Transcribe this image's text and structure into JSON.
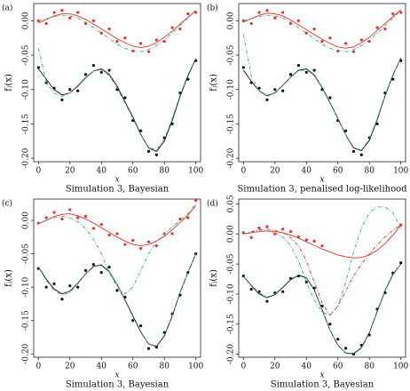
{
  "chart_data": [
    {
      "type": "scatter",
      "panel": "(a)",
      "caption": "Simulation 3, Bayesian",
      "xlabel": "x",
      "ylabel": "fⱼ(x)",
      "xlim": [
        -3,
        103
      ],
      "ylim": [
        -0.205,
        0.025
      ],
      "xticks": [
        0,
        20,
        40,
        60,
        80,
        100
      ],
      "yticks": [
        {
          "value": -0.2,
          "label": "-0.20"
        },
        {
          "value": -0.15,
          "label": "-0.15"
        },
        {
          "value": -0.1,
          "label": "-0.10"
        },
        {
          "value": -0.05,
          "label": "-0.05"
        },
        {
          "value": 0,
          "label": "0.00"
        }
      ],
      "x": [
        0,
        5,
        10,
        15,
        20,
        25,
        30,
        35,
        40,
        45,
        50,
        55,
        60,
        65,
        70,
        75,
        80,
        85,
        90,
        95,
        100
      ],
      "series": [
        {
          "style": "points",
          "color": "#e8302a",
          "values": [
            0.0,
            -0.004,
            0.012,
            0.015,
            0.004,
            0.012,
            -0.004,
            0.0,
            -0.018,
            -0.012,
            -0.03,
            -0.025,
            -0.044,
            -0.033,
            -0.045,
            -0.028,
            -0.03,
            -0.01,
            -0.012,
            0.01,
            0.012
          ]
        },
        {
          "style": "points",
          "color": "#111111",
          "values": [
            -0.068,
            -0.09,
            -0.098,
            -0.115,
            -0.1,
            -0.102,
            -0.078,
            -0.065,
            -0.075,
            -0.072,
            -0.1,
            -0.112,
            -0.145,
            -0.16,
            -0.19,
            -0.195,
            -0.17,
            -0.15,
            -0.105,
            -0.085,
            -0.058
          ]
        },
        {
          "style": "solid",
          "color": "#e8302a",
          "values": [
            -0.003,
            0.002,
            0.007,
            0.01,
            0.01,
            0.007,
            0.002,
            -0.005,
            -0.012,
            -0.019,
            -0.026,
            -0.032,
            -0.037,
            -0.039,
            -0.037,
            -0.032,
            -0.024,
            -0.015,
            -0.005,
            0.005,
            0.015
          ]
        },
        {
          "style": "solid",
          "color": "#111111",
          "values": [
            -0.07,
            -0.085,
            -0.1,
            -0.108,
            -0.105,
            -0.095,
            -0.083,
            -0.073,
            -0.07,
            -0.078,
            -0.095,
            -0.118,
            -0.14,
            -0.165,
            -0.185,
            -0.19,
            -0.175,
            -0.145,
            -0.11,
            -0.08,
            -0.055
          ]
        },
        {
          "style": "dashed",
          "color": "#3aa88a",
          "values": [
            0.0,
            0.003,
            0.006,
            0.008,
            0.007,
            0.004,
            -0.002,
            -0.01,
            -0.018,
            -0.026,
            -0.034,
            -0.04,
            -0.044,
            -0.045,
            -0.042,
            -0.036,
            -0.028,
            -0.018,
            -0.007,
            0.004,
            0.015
          ]
        },
        {
          "style": "dashed",
          "color": "#3aa88a",
          "values": [
            -0.04,
            -0.09,
            -0.105,
            -0.11,
            -0.105,
            -0.094,
            -0.082,
            -0.073,
            -0.071,
            -0.08,
            -0.098,
            -0.12,
            -0.142,
            -0.166,
            -0.184,
            -0.188,
            -0.172,
            -0.142,
            -0.108,
            -0.078,
            -0.055
          ]
        }
      ]
    },
    {
      "type": "scatter",
      "panel": "(b)",
      "caption": "Simulation 3, penalised log-likelihood",
      "xlabel": "x",
      "ylabel": "fⱼ(x)",
      "xlim": [
        -3,
        103
      ],
      "ylim": [
        -0.205,
        0.025
      ],
      "xticks": [
        0,
        20,
        40,
        60,
        80,
        100
      ],
      "yticks": [
        {
          "value": -0.2,
          "label": "-0.20"
        },
        {
          "value": -0.15,
          "label": "-0.15"
        },
        {
          "value": -0.1,
          "label": "-0.10"
        },
        {
          "value": -0.05,
          "label": "-0.05"
        },
        {
          "value": 0,
          "label": "0.00"
        }
      ],
      "x": [
        0,
        5,
        10,
        15,
        20,
        25,
        30,
        35,
        40,
        45,
        50,
        55,
        60,
        65,
        70,
        75,
        80,
        85,
        90,
        95,
        100
      ],
      "series": [
        {
          "style": "points",
          "color": "#e8302a",
          "values": [
            0.0,
            -0.004,
            0.012,
            0.015,
            0.004,
            0.012,
            -0.004,
            0.0,
            -0.018,
            -0.012,
            -0.03,
            -0.025,
            -0.044,
            -0.033,
            -0.045,
            -0.028,
            -0.03,
            -0.01,
            -0.012,
            0.01,
            0.012
          ]
        },
        {
          "style": "points",
          "color": "#111111",
          "values": [
            -0.068,
            -0.09,
            -0.098,
            -0.115,
            -0.1,
            -0.102,
            -0.078,
            -0.065,
            -0.075,
            -0.072,
            -0.1,
            -0.112,
            -0.145,
            -0.16,
            -0.19,
            -0.195,
            -0.17,
            -0.15,
            -0.105,
            -0.085,
            -0.058
          ]
        },
        {
          "style": "solid",
          "color": "#e8302a",
          "values": [
            -0.002,
            0.003,
            0.008,
            0.011,
            0.01,
            0.007,
            0.001,
            -0.006,
            -0.013,
            -0.02,
            -0.027,
            -0.033,
            -0.038,
            -0.04,
            -0.038,
            -0.032,
            -0.024,
            -0.014,
            -0.004,
            0.006,
            0.016
          ]
        },
        {
          "style": "solid",
          "color": "#111111",
          "values": [
            -0.072,
            -0.088,
            -0.102,
            -0.109,
            -0.105,
            -0.094,
            -0.082,
            -0.072,
            -0.07,
            -0.079,
            -0.097,
            -0.119,
            -0.142,
            -0.166,
            -0.185,
            -0.189,
            -0.174,
            -0.144,
            -0.109,
            -0.079,
            -0.054
          ]
        },
        {
          "style": "dashed",
          "color": "#3aa88a",
          "values": [
            0.0,
            0.003,
            0.006,
            0.008,
            0.007,
            0.004,
            -0.002,
            -0.01,
            -0.018,
            -0.026,
            -0.034,
            -0.04,
            -0.044,
            -0.045,
            -0.042,
            -0.036,
            -0.028,
            -0.018,
            -0.007,
            0.004,
            0.015
          ]
        },
        {
          "style": "dashed",
          "color": "#3aa88a",
          "values": [
            -0.02,
            -0.08,
            -0.102,
            -0.11,
            -0.105,
            -0.094,
            -0.082,
            -0.073,
            -0.071,
            -0.08,
            -0.098,
            -0.12,
            -0.142,
            -0.166,
            -0.184,
            -0.188,
            -0.172,
            -0.142,
            -0.108,
            -0.078,
            -0.055
          ]
        }
      ]
    },
    {
      "type": "scatter",
      "panel": "(c)",
      "caption": "Simulation 3, Bayesian",
      "xlabel": "x",
      "ylabel": "fⱼ(x)",
      "xlim": [
        -3,
        103
      ],
      "ylim": [
        -0.205,
        0.032
      ],
      "xticks": [
        0,
        20,
        40,
        60,
        80,
        100
      ],
      "yticks": [
        {
          "value": -0.2,
          "label": "-0.20"
        },
        {
          "value": -0.15,
          "label": "-0.15"
        },
        {
          "value": -0.1,
          "label": "-0.10"
        },
        {
          "value": -0.05,
          "label": "-0.05"
        },
        {
          "value": 0,
          "label": "0.00"
        }
      ],
      "x": [
        0,
        5,
        10,
        15,
        20,
        25,
        30,
        35,
        40,
        45,
        50,
        55,
        60,
        65,
        70,
        75,
        80,
        85,
        90,
        95,
        100
      ],
      "series": [
        {
          "style": "points",
          "color": "#e8302a",
          "values": [
            -0.004,
            0.004,
            0.012,
            0.002,
            0.016,
            0.004,
            0.006,
            -0.012,
            -0.006,
            -0.022,
            -0.02,
            -0.036,
            -0.03,
            -0.042,
            -0.032,
            -0.038,
            -0.02,
            -0.02,
            0.002,
            0.004,
            0.03
          ]
        },
        {
          "style": "points",
          "color": "#111111",
          "values": [
            -0.072,
            -0.1,
            -0.095,
            -0.118,
            -0.098,
            -0.1,
            -0.075,
            -0.066,
            -0.078,
            -0.07,
            -0.105,
            -0.115,
            -0.15,
            -0.158,
            -0.192,
            -0.19,
            -0.168,
            -0.14,
            -0.112,
            -0.078,
            -0.05
          ]
        },
        {
          "style": "solid",
          "color": "#e8302a",
          "values": [
            -0.005,
            0.0,
            0.006,
            0.009,
            0.01,
            0.007,
            0.002,
            -0.004,
            -0.011,
            -0.018,
            -0.025,
            -0.031,
            -0.036,
            -0.038,
            -0.036,
            -0.031,
            -0.024,
            -0.014,
            -0.003,
            0.008,
            0.022
          ]
        },
        {
          "style": "solid",
          "color": "#111111",
          "values": [
            -0.07,
            -0.088,
            -0.103,
            -0.11,
            -0.106,
            -0.094,
            -0.08,
            -0.069,
            -0.067,
            -0.077,
            -0.096,
            -0.119,
            -0.143,
            -0.167,
            -0.185,
            -0.189,
            -0.173,
            -0.143,
            -0.108,
            -0.078,
            -0.05
          ]
        },
        {
          "style": "dashed",
          "color": "#3aa88a",
          "values": [
            -0.005,
            0.0,
            0.004,
            0.006,
            0.004,
            -0.002,
            -0.012,
            -0.028,
            -0.05,
            -0.078,
            -0.1,
            -0.11,
            -0.1,
            -0.075,
            -0.05,
            -0.032,
            -0.02,
            -0.01,
            0.0,
            0.01,
            0.025
          ]
        },
        {
          "style": "dashed",
          "color": "#3aa88a",
          "values": [
            -0.07,
            -0.09,
            -0.105,
            -0.112,
            -0.108,
            -0.095,
            -0.08,
            -0.068,
            -0.066,
            -0.076,
            -0.096,
            -0.12,
            -0.145,
            -0.168,
            -0.185,
            -0.188,
            -0.172,
            -0.142,
            -0.108,
            -0.078,
            -0.05
          ]
        }
      ]
    },
    {
      "type": "scatter",
      "panel": "(d)",
      "caption": "Simulation 3, Bayesian",
      "xlabel": "x",
      "ylabel": "fⱼ(x)",
      "xlim": [
        -3,
        103
      ],
      "ylim": [
        -0.205,
        0.058
      ],
      "xticks": [
        0,
        20,
        40,
        60,
        80,
        100
      ],
      "yticks": [
        {
          "value": -0.2,
          "label": "-0.20"
        },
        {
          "value": -0.15,
          "label": "-0.15"
        },
        {
          "value": -0.1,
          "label": "-0.10"
        },
        {
          "value": -0.05,
          "label": "-0.05"
        },
        {
          "value": 0,
          "label": "0.00"
        },
        {
          "value": 0.05,
          "label": "0.05"
        }
      ],
      "x": [
        0,
        5,
        10,
        15,
        20,
        25,
        30,
        35,
        40,
        45,
        50,
        55,
        60,
        65,
        70,
        75,
        80,
        85,
        90,
        95,
        100
      ],
      "series": [
        {
          "style": "points",
          "color": "#e8302a",
          "values": [
            0.002,
            -0.006,
            0.01,
            0.012,
            0.0,
            0.008,
            0.004,
            -0.005,
            -0.01,
            -0.012,
            -0.02,
            null,
            null,
            null,
            null,
            null,
            null,
            null,
            null,
            null,
            0.015
          ]
        },
        {
          "style": "points",
          "color": "#111111",
          "values": [
            -0.07,
            -0.092,
            -0.096,
            -0.112,
            -0.098,
            -0.096,
            -0.074,
            -0.07,
            -0.08,
            -0.09,
            -0.12,
            -0.15,
            -0.175,
            -0.19,
            -0.2,
            -0.185,
            -0.168,
            -0.125,
            -0.098,
            -0.065,
            -0.048
          ]
        },
        {
          "style": "solid",
          "color": "#e8302a",
          "values": [
            0.0,
            0.002,
            0.004,
            0.005,
            0.004,
            0.002,
            -0.002,
            -0.007,
            -0.013,
            -0.019,
            -0.025,
            -0.03,
            -0.035,
            -0.038,
            -0.04,
            -0.039,
            -0.035,
            -0.027,
            -0.016,
            -0.002,
            0.015
          ]
        },
        {
          "style": "dashed",
          "color": "#e8302a",
          "values": [
            0.0,
            0.004,
            0.007,
            0.008,
            0.006,
            0.002,
            -0.006,
            -0.02,
            -0.045,
            -0.08,
            -0.115,
            -0.135,
            -0.12,
            -0.095,
            -0.07,
            -0.05,
            -0.033,
            -0.018,
            -0.005,
            0.006,
            0.015
          ]
        },
        {
          "style": "solid",
          "color": "#111111",
          "values": [
            -0.07,
            -0.086,
            -0.1,
            -0.106,
            -0.101,
            -0.089,
            -0.076,
            -0.069,
            -0.073,
            -0.093,
            -0.126,
            -0.16,
            -0.185,
            -0.198,
            -0.199,
            -0.189,
            -0.164,
            -0.129,
            -0.094,
            -0.067,
            -0.05
          ]
        },
        {
          "style": "dashed",
          "color": "#3aa88a",
          "values": [
            0.0,
            0.003,
            0.005,
            0.005,
            0.002,
            -0.005,
            -0.02,
            -0.045,
            -0.08,
            -0.11,
            -0.13,
            -0.135,
            -0.12,
            -0.08,
            -0.03,
            0.01,
            0.035,
            0.045,
            0.045,
            0.035,
            0.01
          ]
        },
        {
          "style": "dashed",
          "color": "#3aa88a",
          "values": [
            -0.07,
            -0.085,
            -0.098,
            -0.105,
            -0.1,
            -0.088,
            -0.075,
            -0.068,
            -0.072,
            -0.092,
            -0.125,
            -0.16,
            -0.185,
            -0.198,
            -0.2,
            -0.19,
            -0.165,
            -0.13,
            -0.095,
            -0.068,
            -0.05
          ]
        }
      ]
    }
  ]
}
